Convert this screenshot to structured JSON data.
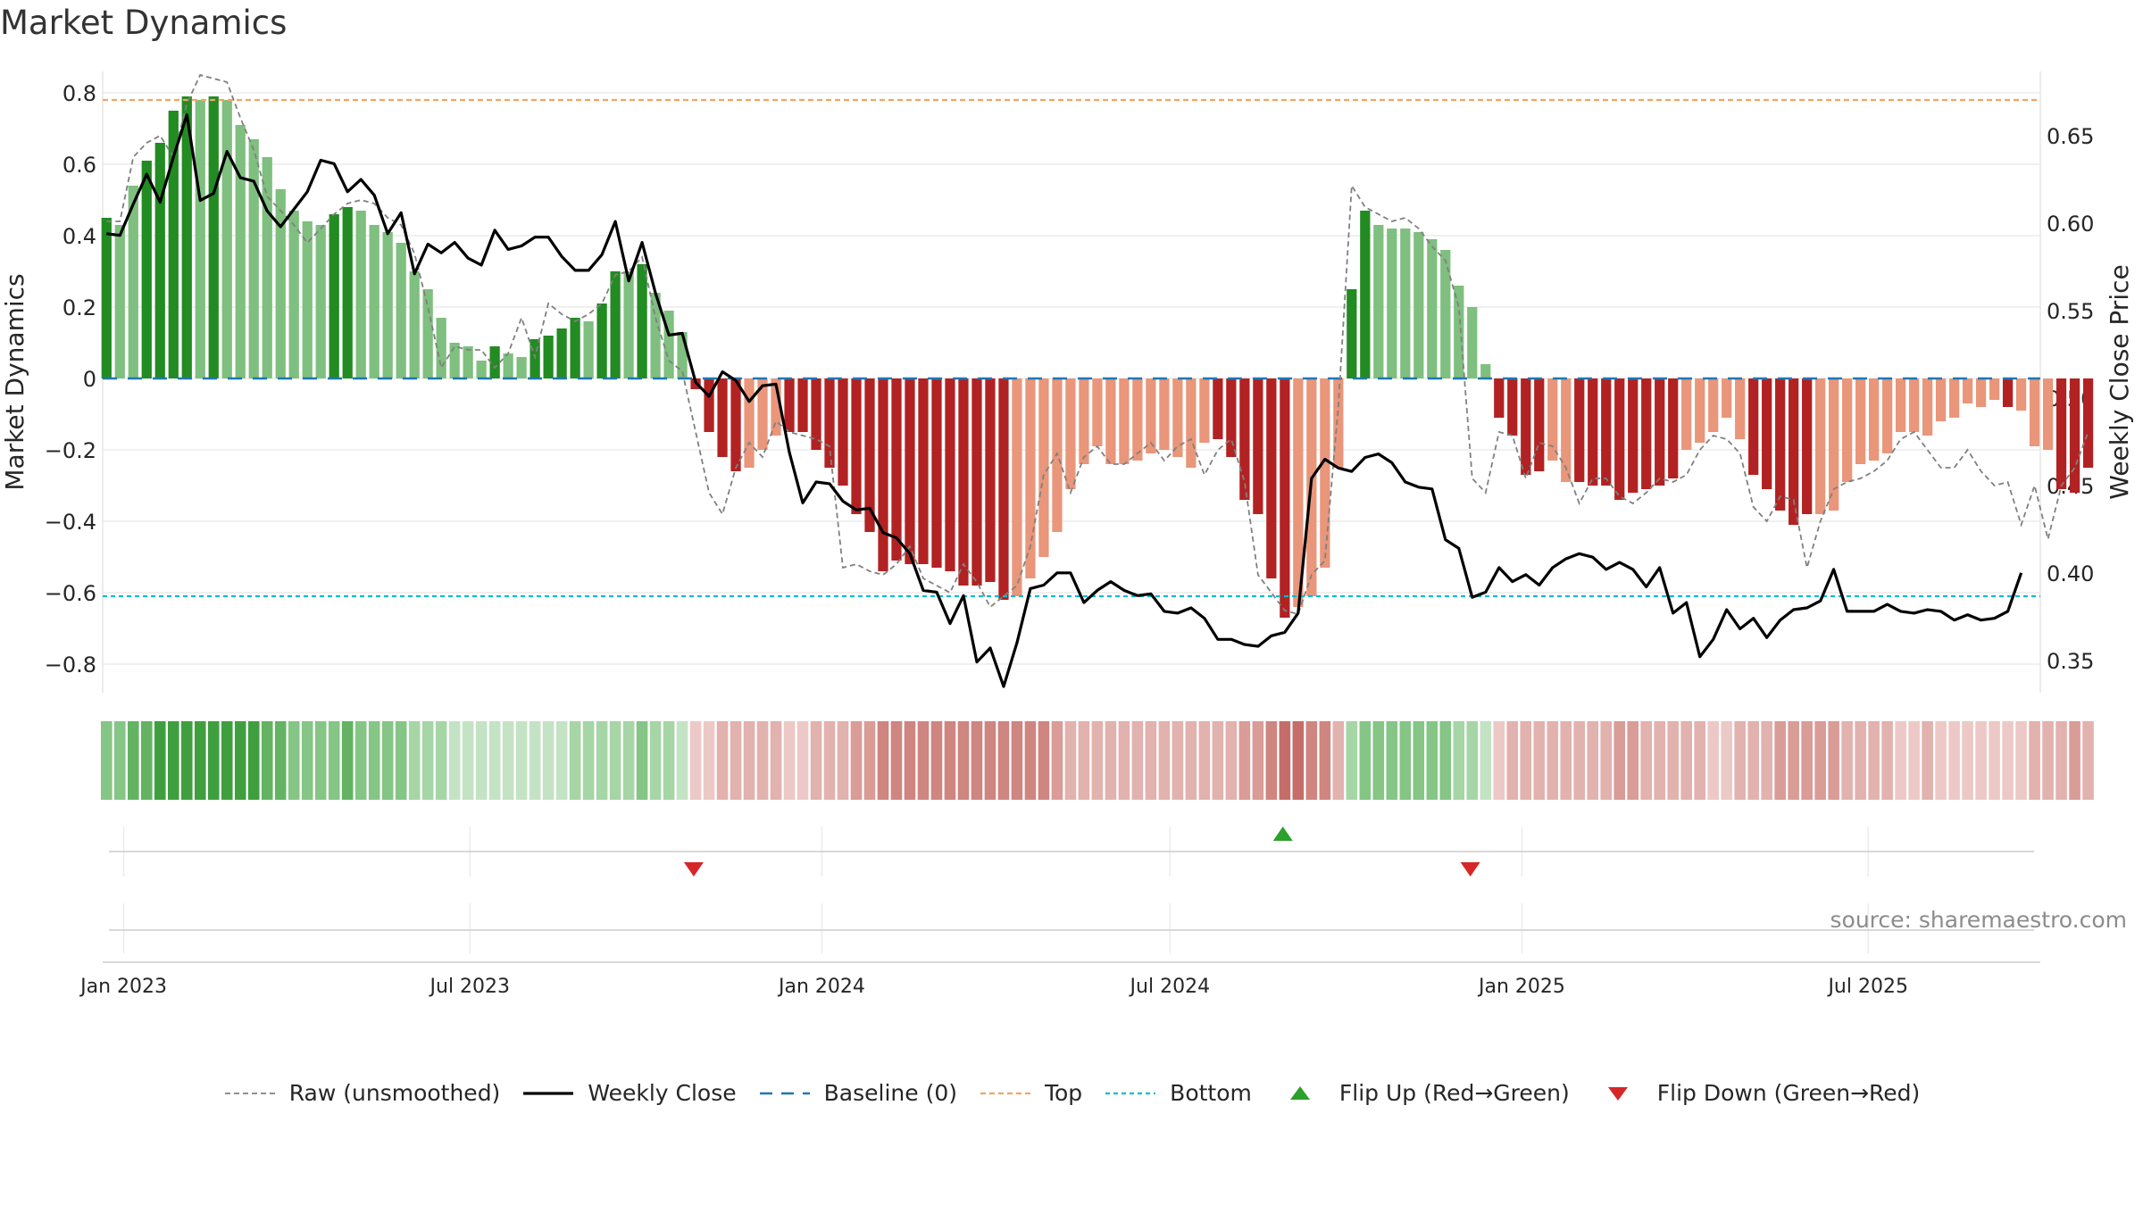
{
  "title": "Market Dynamics",
  "source": "source: sharemaestro.com",
  "colors": {
    "strong_green": "#228b22",
    "light_green": "#7fbf7f",
    "strong_red": "#b22222",
    "light_red": "#e9967a",
    "line": "#000000",
    "raw": "#808080",
    "baseline": "#1f77b4",
    "top": "#f4a460",
    "bottom": "#00bcd4",
    "flip_up": "#2ca02c",
    "flip_down": "#d62728"
  },
  "legend": [
    {
      "label": "Raw (unsmoothed)",
      "style": "raw"
    },
    {
      "label": "Weekly Close",
      "style": "line"
    },
    {
      "label": "Baseline (0)",
      "style": "baseline"
    },
    {
      "label": "Top",
      "style": "top"
    },
    {
      "label": "Bottom",
      "style": "bottom"
    },
    {
      "label": "Flip Up (Red→Green)",
      "style": "flip_up"
    },
    {
      "label": "Flip Down (Green→Red)",
      "style": "flip_down"
    }
  ],
  "chart_data": {
    "type": "bar",
    "title": "Market Dynamics",
    "ylabel": "Market Dynamics",
    "ylabel_right": "Weekly Close Price",
    "ylim": [
      -0.88,
      0.86
    ],
    "yticks": [
      0.8,
      0.6,
      0.4,
      0.2,
      0,
      -0.2,
      -0.4,
      -0.6,
      -0.8
    ],
    "ytick_labels": [
      "0.8",
      "0.6",
      "0.4",
      "0.2",
      "0",
      "−0.2",
      "−0.4",
      "−0.6",
      "−0.8"
    ],
    "ylim_right": [
      0.3315,
      0.6868
    ],
    "yticks_right": [
      0.65,
      0.6,
      0.55,
      0.5,
      0.45,
      0.4,
      0.35
    ],
    "ytick_labels_right": [
      "0.65",
      "0.60",
      "0.55",
      "0.50",
      "0.45",
      "0.40",
      "0.35"
    ],
    "xlim": [
      "2022-12-21",
      "2025-09-29"
    ],
    "xticks": [
      "2023-01-01",
      "2023-07-01",
      "2024-01-01",
      "2024-07-01",
      "2025-01-01",
      "2025-07-01"
    ],
    "xtick_labels": [
      "Jan 2023",
      "Jul 2023",
      "Jan 2024",
      "Jul 2024",
      "Jan 2025",
      "Jul 2025"
    ],
    "top_level": 0.78,
    "bottom_level": -0.61,
    "baseline": 0,
    "start_date": "2022-12-23",
    "week_step_days": 7,
    "dynamics": [
      0.45,
      0.43,
      0.54,
      0.61,
      0.66,
      0.75,
      0.79,
      0.78,
      0.79,
      0.78,
      0.71,
      0.67,
      0.62,
      0.53,
      0.47,
      0.44,
      0.43,
      0.46,
      0.48,
      0.47,
      0.43,
      0.41,
      0.38,
      0.3,
      0.25,
      0.17,
      0.1,
      0.09,
      0.05,
      0.09,
      0.07,
      0.06,
      0.11,
      0.12,
      0.14,
      0.17,
      0.16,
      0.21,
      0.3,
      0.3,
      0.32,
      0.24,
      0.19,
      0.13,
      -0.03,
      -0.15,
      -0.22,
      -0.26,
      -0.25,
      -0.2,
      -0.16,
      -0.15,
      -0.15,
      -0.2,
      -0.25,
      -0.3,
      -0.38,
      -0.43,
      -0.54,
      -0.51,
      -0.52,
      -0.52,
      -0.53,
      -0.54,
      -0.58,
      -0.58,
      -0.57,
      -0.62,
      -0.61,
      -0.56,
      -0.5,
      -0.43,
      -0.31,
      -0.24,
      -0.19,
      -0.24,
      -0.24,
      -0.23,
      -0.21,
      -0.2,
      -0.22,
      -0.25,
      -0.18,
      -0.17,
      -0.22,
      -0.34,
      -0.38,
      -0.56,
      -0.67,
      -0.64,
      -0.61,
      -0.53,
      -0.25,
      0.25,
      0.47,
      0.43,
      0.42,
      0.42,
      0.41,
      0.39,
      0.36,
      0.26,
      0.2,
      0.04,
      -0.11,
      -0.16,
      -0.27,
      -0.26,
      -0.23,
      -0.29,
      -0.29,
      -0.3,
      -0.3,
      -0.34,
      -0.32,
      -0.31,
      -0.3,
      -0.28,
      -0.2,
      -0.18,
      -0.15,
      -0.11,
      -0.17,
      -0.27,
      -0.31,
      -0.37,
      -0.41,
      -0.38,
      -0.38,
      -0.37,
      -0.29,
      -0.24,
      -0.23,
      -0.21,
      -0.15,
      -0.15,
      -0.16,
      -0.12,
      -0.11,
      -0.07,
      -0.08,
      -0.06,
      -0.08,
      -0.09,
      -0.19,
      -0.2,
      -0.31,
      -0.32,
      -0.25
    ],
    "strong": [
      1,
      0,
      0,
      1,
      1,
      1,
      1,
      0,
      1,
      0,
      0,
      0,
      0,
      0,
      0,
      0,
      0,
      1,
      1,
      0,
      0,
      0,
      0,
      0,
      0,
      0,
      0,
      0,
      0,
      1,
      0,
      0,
      1,
      1,
      1,
      1,
      0,
      1,
      1,
      0,
      1,
      0,
      0,
      0,
      1,
      1,
      1,
      1,
      0,
      0,
      0,
      1,
      1,
      1,
      1,
      1,
      1,
      1,
      1,
      1,
      1,
      1,
      1,
      1,
      1,
      1,
      1,
      1,
      0,
      0,
      0,
      0,
      0,
      0,
      0,
      0,
      0,
      0,
      0,
      0,
      0,
      0,
      0,
      1,
      1,
      1,
      1,
      1,
      1,
      0,
      0,
      0,
      0,
      1,
      1,
      0,
      0,
      0,
      0,
      0,
      0,
      0,
      0,
      0,
      1,
      1,
      1,
      1,
      0,
      0,
      1,
      1,
      1,
      1,
      1,
      1,
      1,
      1,
      0,
      0,
      0,
      0,
      0,
      1,
      1,
      1,
      1,
      1,
      0,
      0,
      0,
      0,
      0,
      0,
      0,
      0,
      0,
      0,
      0,
      0,
      0,
      0,
      1,
      0,
      0,
      0,
      1,
      1,
      1,
      1,
      0
    ],
    "raw": [
      0.44,
      0.44,
      0.62,
      0.66,
      0.68,
      0.62,
      0.77,
      0.85,
      0.84,
      0.83,
      0.73,
      0.64,
      0.51,
      0.47,
      0.43,
      0.38,
      0.42,
      0.46,
      0.49,
      0.5,
      0.49,
      0.45,
      0.43,
      0.35,
      0.2,
      0.03,
      0.09,
      0.08,
      0.08,
      0.03,
      0.07,
      0.17,
      0.06,
      0.21,
      0.18,
      0.16,
      0.18,
      0.21,
      0.29,
      0.3,
      0.34,
      0.17,
      0.05,
      0.02,
      -0.15,
      -0.32,
      -0.38,
      -0.25,
      -0.18,
      -0.22,
      -0.12,
      -0.15,
      -0.16,
      -0.17,
      -0.19,
      -0.53,
      -0.52,
      -0.54,
      -0.55,
      -0.52,
      -0.47,
      -0.56,
      -0.58,
      -0.6,
      -0.52,
      -0.57,
      -0.64,
      -0.61,
      -0.58,
      -0.47,
      -0.27,
      -0.21,
      -0.32,
      -0.22,
      -0.19,
      -0.24,
      -0.24,
      -0.21,
      -0.18,
      -0.23,
      -0.19,
      -0.17,
      -0.27,
      -0.2,
      -0.17,
      -0.29,
      -0.55,
      -0.6,
      -0.65,
      -0.66,
      -0.55,
      -0.51,
      -0.08,
      0.54,
      0.48,
      0.46,
      0.44,
      0.45,
      0.42,
      0.37,
      0.33,
      0.2,
      -0.28,
      -0.32,
      -0.15,
      -0.16,
      -0.28,
      -0.18,
      -0.19,
      -0.25,
      -0.35,
      -0.28,
      -0.28,
      -0.33,
      -0.35,
      -0.32,
      -0.28,
      -0.29,
      -0.27,
      -0.2,
      -0.16,
      -0.17,
      -0.21,
      -0.36,
      -0.4,
      -0.33,
      -0.34,
      -0.53,
      -0.4,
      -0.31,
      -0.29,
      -0.28,
      -0.26,
      -0.23,
      -0.17,
      -0.15,
      -0.2,
      -0.25,
      -0.25,
      -0.2,
      -0.26,
      -0.3,
      -0.29,
      -0.41,
      -0.3,
      -0.45,
      -0.3,
      -0.25,
      -0.15
    ],
    "close": [
      0.594,
      0.593,
      0.611,
      0.628,
      0.612,
      0.638,
      0.662,
      0.613,
      0.617,
      0.641,
      0.626,
      0.624,
      0.607,
      0.598,
      0.608,
      0.618,
      0.636,
      0.634,
      0.618,
      0.625,
      0.616,
      0.594,
      0.606,
      0.571,
      0.588,
      0.583,
      0.589,
      0.58,
      0.576,
      0.596,
      0.585,
      0.587,
      0.592,
      0.592,
      0.581,
      0.573,
      0.573,
      0.582,
      0.601,
      0.567,
      0.589,
      0.56,
      0.536,
      0.537,
      0.509,
      0.501,
      0.515,
      0.51,
      0.498,
      0.507,
      0.508,
      0.469,
      0.44,
      0.452,
      0.451,
      0.441,
      0.436,
      0.437,
      0.423,
      0.42,
      0.411,
      0.39,
      0.389,
      0.371,
      0.387,
      0.349,
      0.357,
      0.335,
      0.36,
      0.391,
      0.393,
      0.4,
      0.4,
      0.383,
      0.39,
      0.395,
      0.39,
      0.387,
      0.388,
      0.378,
      0.377,
      0.38,
      0.374,
      0.362,
      0.362,
      0.359,
      0.358,
      0.364,
      0.366,
      0.377,
      0.454,
      0.465,
      0.46,
      0.458,
      0.466,
      0.468,
      0.463,
      0.452,
      0.449,
      0.448,
      0.419,
      0.414,
      0.386,
      0.389,
      0.403,
      0.395,
      0.399,
      0.393,
      0.403,
      0.408,
      0.411,
      0.409,
      0.402,
      0.406,
      0.402,
      0.392,
      0.403,
      0.377,
      0.383,
      0.352,
      0.362,
      0.379,
      0.368,
      0.374,
      0.363,
      0.373,
      0.379,
      0.38,
      0.384,
      0.402,
      0.378,
      0.378,
      0.378,
      0.382,
      0.378,
      0.377,
      0.379,
      0.378,
      0.373,
      0.376,
      0.373,
      0.374,
      0.378,
      0.4
    ],
    "flips": [
      {
        "date": "2023-10-26",
        "type": "down"
      },
      {
        "date": "2024-08-29",
        "type": "up"
      },
      {
        "date": "2024-12-05",
        "type": "down"
      }
    ]
  }
}
